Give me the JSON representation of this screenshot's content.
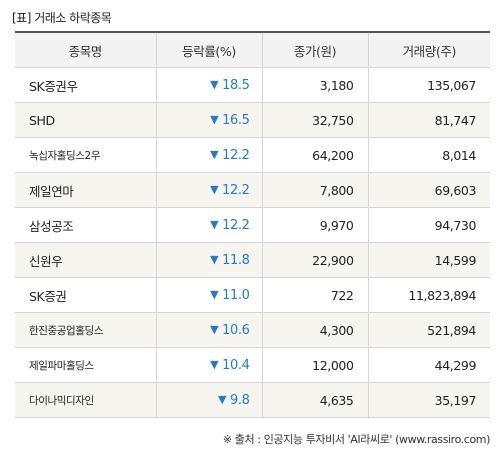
{
  "title": "[표] 거래소 하락종목",
  "headers": [
    "종목명",
    "등락률(%)",
    "종가(원)",
    "거래량(주)"
  ],
  "rows": [
    {
      "name": "SK증권우",
      "rate": "18.5",
      "price": "3,180",
      "volume": "135,067"
    },
    {
      "name": "SHD",
      "rate": "16.5",
      "price": "32,750",
      "volume": "81,747"
    },
    {
      "name": "녹십자홀딩스2우",
      "rate": "12.2",
      "price": "64,200",
      "volume": "8,014"
    },
    {
      "name": "제일연마",
      "rate": "12.2",
      "price": "7,800",
      "volume": "69,603"
    },
    {
      "name": "삼성공조",
      "rate": "12.2",
      "price": "9,970",
      "volume": "94,730"
    },
    {
      "name": "신원우",
      "rate": "11.8",
      "price": "22,900",
      "volume": "14,599"
    },
    {
      "name": "SK증권",
      "rate": "11.0",
      "price": "722",
      "volume": "11,823,894"
    },
    {
      "name": "한진중공업홀딩스",
      "rate": "10.6",
      "price": "4,300",
      "volume": "521,894"
    },
    {
      "name": "제일파마홀딩스",
      "rate": "10.4",
      "price": "12,000",
      "volume": "44,299"
    },
    {
      "name": "다이나믹디자인",
      "rate": "9.8",
      "price": "4,635",
      "volume": "35,197"
    }
  ],
  "arrow_glyph": "▼",
  "source": "※ 출처 : 인공지능 투자비서 'AI라씨로' (www.rassiro.com)",
  "colors": {
    "down": "#2779c6",
    "header_bg": "#f3f3f3",
    "stripe_bg": "#f6f5ef"
  }
}
